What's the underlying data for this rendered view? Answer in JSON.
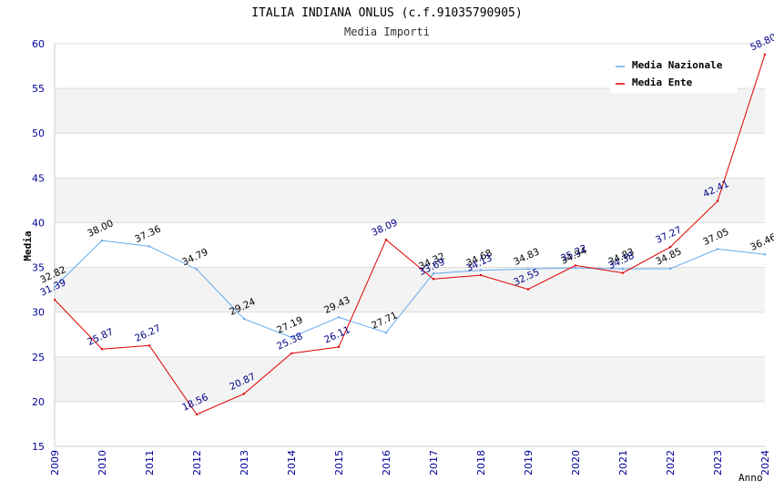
{
  "chart_data": {
    "type": "line",
    "title": "ITALIA INDIANA ONLUS (c.f.91035790905)",
    "subtitle": "Media Importi",
    "xlabel": "Anno",
    "ylabel": "Media",
    "ylim": [
      15,
      60
    ],
    "yticks": [
      15,
      20,
      25,
      30,
      35,
      40,
      45,
      50,
      55,
      60
    ],
    "x": [
      2009,
      2010,
      2011,
      2012,
      2013,
      2014,
      2015,
      2016,
      2017,
      2018,
      2019,
      2020,
      2021,
      2022,
      2023,
      2024
    ],
    "xtick_labels": [
      "2009",
      "2010",
      "2011",
      "2012",
      "2013",
      "2014",
      "2015",
      "2016",
      "2017",
      "2018",
      "2019",
      "2020",
      "2021",
      "2022",
      "2023",
      "2024"
    ],
    "legend_position": "top-right",
    "series": [
      {
        "name": "Media Nazionale",
        "color": "#66aaee",
        "label_color": "#000000",
        "values": [
          32.82,
          38.0,
          37.36,
          34.79,
          29.24,
          27.19,
          29.43,
          27.71,
          34.32,
          34.68,
          34.83,
          34.94,
          34.83,
          34.85,
          37.05,
          36.46
        ],
        "labels": [
          "32.82",
          "38.00",
          "37.36",
          "34.79",
          "29.24",
          "27.19",
          "29.43",
          "27.71",
          "34.32",
          "34.68",
          "34.83",
          "34.94",
          "34.83",
          "34.85",
          "37.05",
          "36.46"
        ]
      },
      {
        "name": "Media Ente",
        "color": "#dd0000",
        "label_color": "#000088",
        "values": [
          31.39,
          25.87,
          26.27,
          18.56,
          20.87,
          25.38,
          26.11,
          38.09,
          33.69,
          34.13,
          32.55,
          35.22,
          34.38,
          37.27,
          42.41,
          58.8
        ],
        "labels": [
          "31.39",
          "25.87",
          "26.27",
          "18.56",
          "20.87",
          "25.38",
          "26.11",
          "38.09",
          "33.69",
          "34.13",
          "32.55",
          "35.22",
          "34.38",
          "37.27",
          "42.41",
          "58.80"
        ]
      }
    ],
    "colors": {
      "band": "#f3f3f3",
      "grid": "#dddddd",
      "axis": "#cccccc",
      "tick_label": "#000099",
      "title": "#000000",
      "subtitle": "#333333"
    }
  }
}
